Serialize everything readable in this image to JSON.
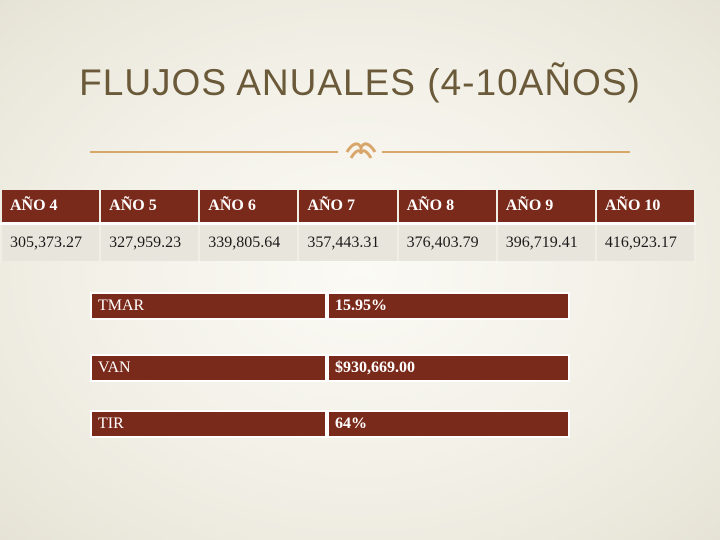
{
  "slide": {
    "title": "FLUJOS ANUALES (4-10AÑOS)",
    "ornament_icon": "fleur-ornament-icon",
    "accent_color": "#d8a66a",
    "header_color": "#7a2a1b"
  },
  "years_table": {
    "headers": [
      "AÑO 4",
      "AÑO 5",
      "AÑO 6",
      "AÑO 7",
      "AÑO 8",
      "AÑO 9",
      "AÑO 10"
    ],
    "values": [
      "305,373.27",
      "327,959.23",
      "339,805.64",
      "357,443.31",
      "376,403.79",
      "396,719.41",
      "416,923.17"
    ]
  },
  "indicators": [
    {
      "label": "TMAR",
      "value": "15.95%"
    },
    {
      "label": "VAN",
      "value": "$930,669.00"
    },
    {
      "label": "TIR",
      "value": "64%"
    }
  ]
}
